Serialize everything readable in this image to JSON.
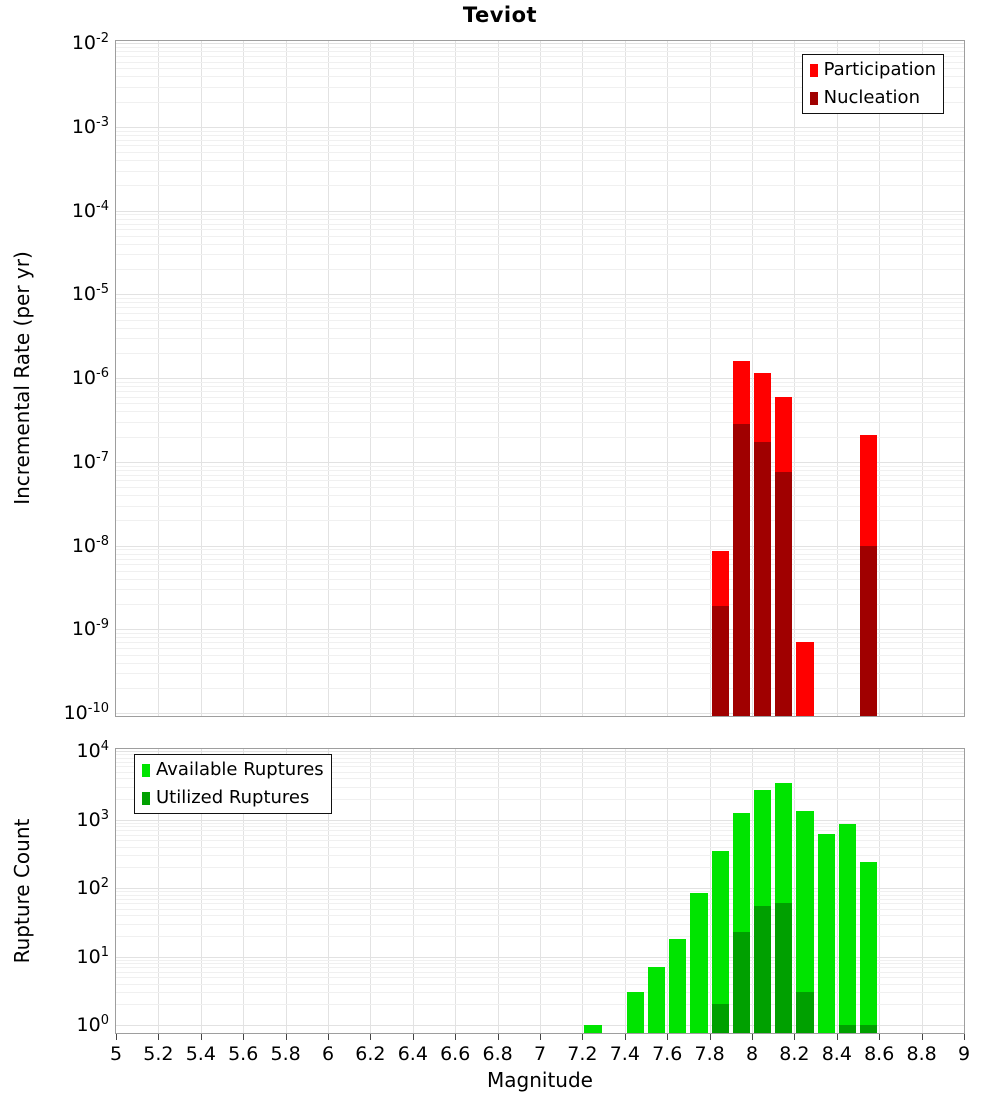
{
  "title": "Teviot",
  "figure": {
    "background": "#ffffff",
    "frame_color": "#9e9e9e",
    "grid_major": "#e2e2e2",
    "grid_minor": "#f0f0f0",
    "tick_color": "#444444"
  },
  "xaxis": {
    "label": "Magnitude",
    "min": 5,
    "max": 9,
    "tick_step": 0.2,
    "tick_labels": [
      "5",
      "5.2",
      "5.4",
      "5.6",
      "5.8",
      "6",
      "6.2",
      "6.4",
      "6.6",
      "6.8",
      "7",
      "7.2",
      "7.4",
      "7.6",
      "7.8",
      "8",
      "8.2",
      "8.4",
      "8.6",
      "8.8",
      "9"
    ]
  },
  "chart_data": [
    {
      "name": "incremental-rate",
      "type": "bar",
      "ylabel": "Incremental Rate (per yr)",
      "yscale": "log",
      "ylim": [
        1e-10,
        0.01
      ],
      "y_tick_exponents": [
        -2,
        -3,
        -4,
        -5,
        -6,
        -7,
        -8,
        -9,
        -10
      ],
      "xlim": [
        5,
        9
      ],
      "bin_width": 0.1,
      "grid": true,
      "legend": {
        "position": "top-right",
        "entries": [
          {
            "label": "Participation",
            "color": "#ff0000"
          },
          {
            "label": "Nucleation",
            "color": "#a00000"
          }
        ]
      },
      "series": [
        {
          "name": "Participation",
          "color": "#ff0000",
          "points": [
            {
              "m": 7.85,
              "value": 8.5e-09
            },
            {
              "m": 7.95,
              "value": 1.6e-06
            },
            {
              "m": 8.05,
              "value": 1.15e-06
            },
            {
              "m": 8.15,
              "value": 5.9e-07
            },
            {
              "m": 8.25,
              "value": 7e-10
            },
            {
              "m": 8.55,
              "value": 2.1e-07
            }
          ]
        },
        {
          "name": "Nucleation",
          "color": "#a00000",
          "points": [
            {
              "m": 7.85,
              "value": 1.9e-09
            },
            {
              "m": 7.95,
              "value": 2.8e-07
            },
            {
              "m": 8.05,
              "value": 1.7e-07
            },
            {
              "m": 8.15,
              "value": 7.5e-08
            },
            {
              "m": 8.55,
              "value": 1e-08
            }
          ]
        }
      ]
    },
    {
      "name": "rupture-count",
      "type": "bar",
      "ylabel": "Rupture Count",
      "yscale": "log",
      "ylim": [
        1,
        10000
      ],
      "y_tick_exponents": [
        4,
        3,
        2,
        1,
        0
      ],
      "xlim": [
        5,
        9
      ],
      "bin_width": 0.1,
      "grid": true,
      "legend": {
        "position": "top-left",
        "entries": [
          {
            "label": "Available Ruptures",
            "color": "#00e400"
          },
          {
            "label": "Utilized Ruptures",
            "color": "#00a000"
          }
        ]
      },
      "series": [
        {
          "name": "Available Ruptures",
          "color": "#00e400",
          "points": [
            {
              "m": 7.25,
              "value": 1
            },
            {
              "m": 7.45,
              "value": 3
            },
            {
              "m": 7.55,
              "value": 7
            },
            {
              "m": 7.65,
              "value": 18
            },
            {
              "m": 7.75,
              "value": 85
            },
            {
              "m": 7.85,
              "value": 350
            },
            {
              "m": 7.95,
              "value": 1250
            },
            {
              "m": 8.05,
              "value": 2700
            },
            {
              "m": 8.15,
              "value": 3400
            },
            {
              "m": 8.25,
              "value": 1350
            },
            {
              "m": 8.35,
              "value": 620
            },
            {
              "m": 8.45,
              "value": 850
            },
            {
              "m": 8.55,
              "value": 240
            }
          ]
        },
        {
          "name": "Utilized Ruptures",
          "color": "#00a000",
          "points": [
            {
              "m": 7.85,
              "value": 2
            },
            {
              "m": 7.95,
              "value": 23
            },
            {
              "m": 8.05,
              "value": 55
            },
            {
              "m": 8.15,
              "value": 60
            },
            {
              "m": 8.25,
              "value": 3
            },
            {
              "m": 8.45,
              "value": 1
            },
            {
              "m": 8.55,
              "value": 1
            }
          ]
        }
      ]
    }
  ]
}
